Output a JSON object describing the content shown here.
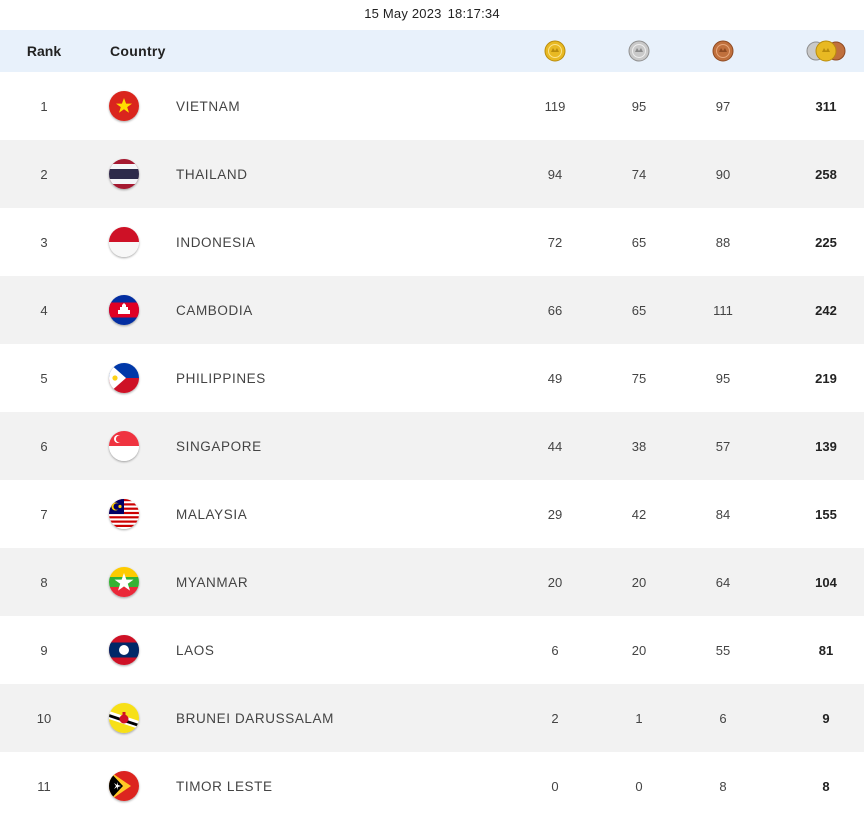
{
  "timestamp": {
    "date": "15 May 2023",
    "time": "18:17:34"
  },
  "header": {
    "rank_label": "Rank",
    "country_label": "Country",
    "gold_icon": "gold-medal-icon",
    "silver_icon": "silver-medal-icon",
    "bronze_icon": "bronze-medal-icon",
    "total_icon": "total-medals-icon"
  },
  "colors": {
    "header_bg": "#e8f1fb",
    "row_alt_bg": "#f2f2f2",
    "gold": "#e8b923",
    "silver": "#bdbdbd",
    "bronze": "#c0703d"
  },
  "rows": [
    {
      "rank": "1",
      "country": "VIETNAM",
      "gold": "119",
      "silver": "95",
      "bronze": "97",
      "total": "311",
      "flag_icon": "vietnam-flag-icon"
    },
    {
      "rank": "2",
      "country": "THAILAND",
      "gold": "94",
      "silver": "74",
      "bronze": "90",
      "total": "258",
      "flag_icon": "thailand-flag-icon"
    },
    {
      "rank": "3",
      "country": "INDONESIA",
      "gold": "72",
      "silver": "65",
      "bronze": "88",
      "total": "225",
      "flag_icon": "indonesia-flag-icon"
    },
    {
      "rank": "4",
      "country": "CAMBODIA",
      "gold": "66",
      "silver": "65",
      "bronze": "111",
      "total": "242",
      "flag_icon": "cambodia-flag-icon"
    },
    {
      "rank": "5",
      "country": "PHILIPPINES",
      "gold": "49",
      "silver": "75",
      "bronze": "95",
      "total": "219",
      "flag_icon": "philippines-flag-icon"
    },
    {
      "rank": "6",
      "country": "SINGAPORE",
      "gold": "44",
      "silver": "38",
      "bronze": "57",
      "total": "139",
      "flag_icon": "singapore-flag-icon"
    },
    {
      "rank": "7",
      "country": "MALAYSIA",
      "gold": "29",
      "silver": "42",
      "bronze": "84",
      "total": "155",
      "flag_icon": "malaysia-flag-icon"
    },
    {
      "rank": "8",
      "country": "MYANMAR",
      "gold": "20",
      "silver": "20",
      "bronze": "64",
      "total": "104",
      "flag_icon": "myanmar-flag-icon"
    },
    {
      "rank": "9",
      "country": "LAOS",
      "gold": "6",
      "silver": "20",
      "bronze": "55",
      "total": "81",
      "flag_icon": "laos-flag-icon"
    },
    {
      "rank": "10",
      "country": "BRUNEI DARUSSALAM",
      "gold": "2",
      "silver": "1",
      "bronze": "6",
      "total": "9",
      "flag_icon": "brunei-flag-icon"
    },
    {
      "rank": "11",
      "country": "TIMOR LESTE",
      "gold": "0",
      "silver": "0",
      "bronze": "8",
      "total": "8",
      "flag_icon": "timor-leste-flag-icon"
    }
  ]
}
